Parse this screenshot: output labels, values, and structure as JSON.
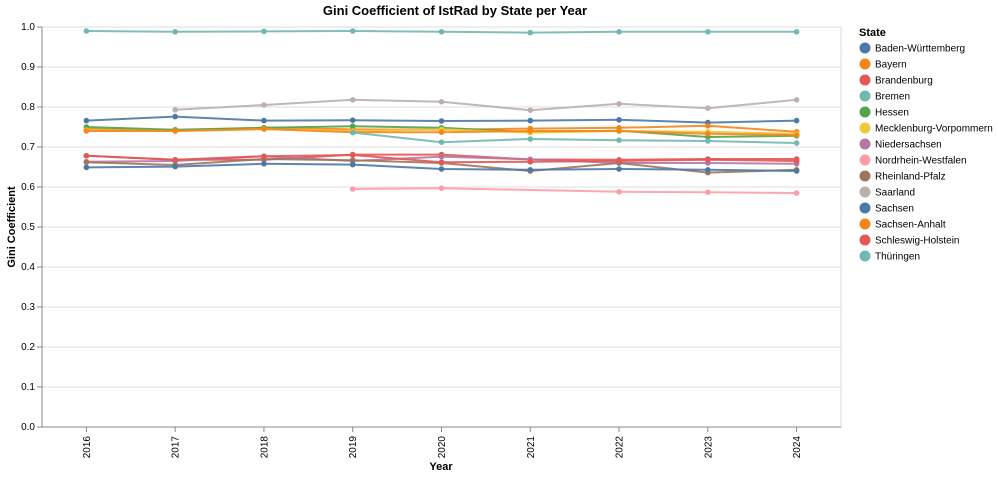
{
  "chart_data": {
    "type": "line",
    "title": "Gini Coefficient of IstRad by State per Year",
    "xlabel": "Year",
    "ylabel": "Gini Coefficient",
    "x": [
      "2016",
      "2017",
      "2018",
      "2019",
      "2020",
      "2021",
      "2022",
      "2023",
      "2024"
    ],
    "ylim": [
      0,
      1
    ],
    "yticks": [
      "0.0",
      "0.1",
      "0.2",
      "0.3",
      "0.4",
      "0.5",
      "0.6",
      "0.7",
      "0.8",
      "0.9",
      "1.0"
    ],
    "grid": true,
    "legend_title": "State",
    "legend_position": "right",
    "series": [
      {
        "name": "Baden-Württemberg",
        "color": "#4c78a8",
        "values": [
          0.766,
          0.776,
          0.766,
          0.767,
          0.765,
          0.766,
          0.768,
          0.761,
          0.766
        ]
      },
      {
        "name": "Bayern",
        "color": "#f58518",
        "values": [
          0.745,
          0.742,
          0.748,
          0.744,
          0.743,
          0.746,
          0.748,
          0.753,
          0.738
        ]
      },
      {
        "name": "Brandenburg",
        "color": "#e45756",
        "values": [
          0.678,
          0.668,
          0.668,
          0.681,
          0.681,
          0.669,
          0.668,
          0.67,
          0.67
        ]
      },
      {
        "name": "Bremen",
        "color": "#72b7b2",
        "values": [
          0.99,
          0.988,
          0.989,
          0.99,
          0.988,
          0.986,
          0.988,
          0.988,
          0.988
        ]
      },
      {
        "name": "Hessen",
        "color": "#54a24b",
        "values": [
          0.75,
          0.743,
          0.748,
          0.752,
          0.748,
          0.737,
          0.741,
          0.725,
          0.728
        ]
      },
      {
        "name": "Mecklenburg-Vorpommern",
        "color": "#eeca3b",
        "values": [
          0.742,
          0.74,
          0.745,
          0.74,
          0.744,
          0.736,
          0.74,
          0.738,
          0.733
        ]
      },
      {
        "name": "Niedersachsen",
        "color": "#b279a2",
        "values": [
          0.663,
          0.665,
          0.677,
          0.665,
          0.676,
          0.669,
          0.66,
          0.66,
          0.658
        ]
      },
      {
        "name": "Nordrhein-Westfalen",
        "color": "#ff9da6",
        "values": [
          null,
          null,
          null,
          0.595,
          0.597,
          null,
          0.588,
          0.587,
          0.585
        ]
      },
      {
        "name": "Rheinland-Pfalz",
        "color": "#9d755d",
        "values": [
          0.662,
          0.655,
          0.67,
          0.667,
          0.66,
          0.64,
          0.66,
          0.636,
          0.643
        ]
      },
      {
        "name": "Saarland",
        "color": "#bab0ac",
        "values": [
          null,
          0.793,
          0.805,
          0.818,
          0.813,
          0.792,
          0.808,
          0.797,
          0.818
        ]
      },
      {
        "name": "Sachsen",
        "color": "#4c78a8",
        "values": [
          0.649,
          0.651,
          0.658,
          0.656,
          0.645,
          0.643,
          0.645,
          0.643,
          0.64
        ]
      },
      {
        "name": "Sachsen-Anhalt",
        "color": "#f58518",
        "values": [
          0.74,
          0.74,
          0.745,
          0.737,
          0.737,
          0.74,
          0.74,
          0.733,
          0.73
        ]
      },
      {
        "name": "Schleswig-Holstein",
        "color": "#e45756",
        "values": [
          0.678,
          0.668,
          0.677,
          0.68,
          0.662,
          0.663,
          0.665,
          0.668,
          0.665
        ]
      },
      {
        "name": "Thüringen",
        "color": "#72b7b2",
        "values": [
          null,
          null,
          null,
          0.736,
          0.712,
          0.72,
          0.717,
          0.715,
          0.71
        ]
      }
    ]
  }
}
